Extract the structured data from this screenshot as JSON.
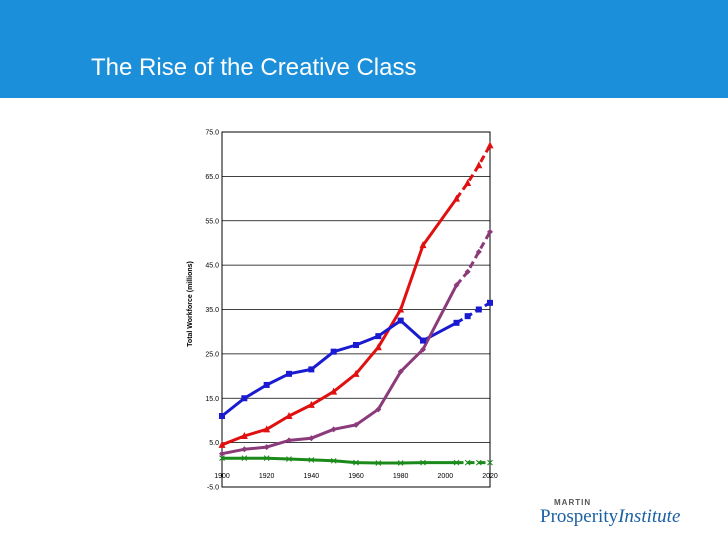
{
  "slide": {
    "title": "The Rise of the Creative Class"
  },
  "logo": {
    "line1": "MARTIN",
    "line2a": "Prosperity",
    "line2b": "Institute"
  },
  "colors": {
    "header_bg": "#1b8fd9",
    "red": "#e01010",
    "blue": "#1a1ad0",
    "purple": "#8b3a7a",
    "green": "#1a8a1a"
  },
  "chart_data": {
    "type": "line",
    "title": "",
    "xlabel": "",
    "ylabel": "Total Workforce (millions)",
    "xlim": [
      1900,
      2020
    ],
    "ylim": [
      -5,
      75
    ],
    "x_ticks": [
      "1900",
      "1920",
      "1940",
      "1960",
      "1980",
      "2000",
      "2020"
    ],
    "y_ticks": [
      "75.0",
      "65.0",
      "55.0",
      "45.0",
      "35.0",
      "25.0",
      "15.0",
      "5.0",
      "-5.0"
    ],
    "grid": true,
    "series": [
      {
        "color": "#e01010",
        "marker": "triangle",
        "x": [
          1900,
          1910,
          1920,
          1930,
          1940,
          1950,
          1960,
          1970,
          1980,
          1990,
          2005
        ],
        "values": [
          4.5,
          6.5,
          8,
          11,
          13.5,
          16.5,
          20.5,
          26.5,
          35,
          49.5,
          60
        ],
        "projection": {
          "x": [
            2005,
            2010,
            2015,
            2020
          ],
          "values": [
            60,
            63.5,
            67.5,
            72
          ]
        }
      },
      {
        "color": "#1a1ad0",
        "marker": "square",
        "x": [
          1900,
          1910,
          1920,
          1930,
          1940,
          1950,
          1960,
          1970,
          1980,
          1990,
          2005
        ],
        "values": [
          11,
          15,
          18,
          20.5,
          21.5,
          25.5,
          27,
          29,
          32.5,
          28,
          32
        ],
        "projection": {
          "x": [
            2005,
            2010,
            2015,
            2020
          ],
          "values": [
            32,
            33.5,
            35,
            36.5
          ]
        }
      },
      {
        "color": "#8b3a7a",
        "marker": "diamond",
        "x": [
          1900,
          1910,
          1920,
          1930,
          1940,
          1950,
          1960,
          1970,
          1980,
          1990,
          2005
        ],
        "values": [
          2.5,
          3.5,
          4,
          5.5,
          6,
          8,
          9,
          12.5,
          21,
          26,
          40.5
        ],
        "projection": {
          "x": [
            2005,
            2010,
            2015,
            2020
          ],
          "values": [
            40.5,
            43.5,
            48,
            52.5
          ]
        }
      },
      {
        "color": "#1a8a1a",
        "marker": "x",
        "x": [
          1900,
          1910,
          1920,
          1930,
          1940,
          1950,
          1960,
          1970,
          1980,
          1990,
          2005
        ],
        "values": [
          1.5,
          1.5,
          1.5,
          1.3,
          1.1,
          0.9,
          0.5,
          0.4,
          0.4,
          0.5,
          0.5
        ],
        "projection": {
          "x": [
            2005,
            2010,
            2015,
            2020
          ],
          "values": [
            0.5,
            0.5,
            0.5,
            0.5
          ]
        }
      }
    ]
  }
}
